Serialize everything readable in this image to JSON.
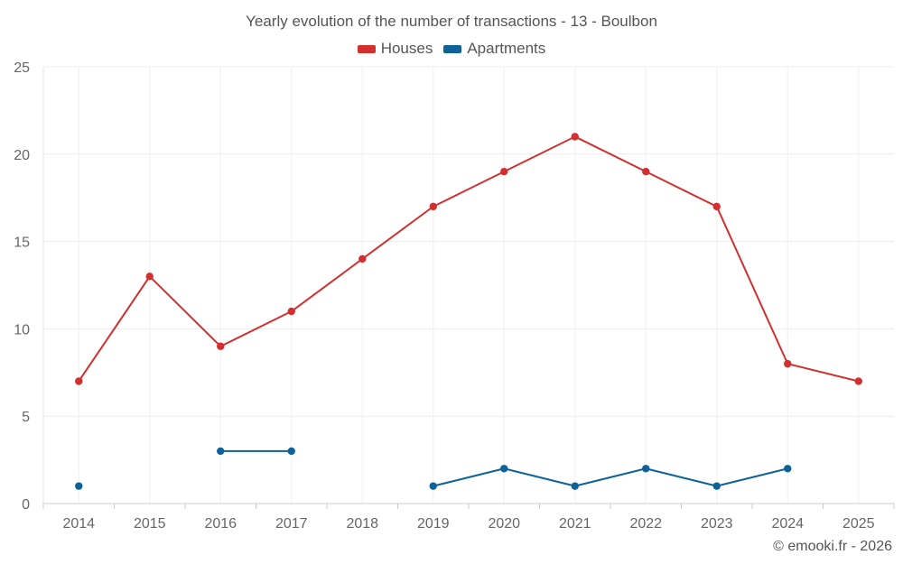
{
  "chart_data": {
    "type": "line",
    "title": "Yearly evolution of the number of transactions - 13 - Boulbon",
    "xlabel": "",
    "ylabel": "",
    "categories": [
      "2014",
      "2015",
      "2016",
      "2017",
      "2018",
      "2019",
      "2020",
      "2021",
      "2022",
      "2023",
      "2024",
      "2025"
    ],
    "ylim": [
      0,
      25
    ],
    "yticks": [
      0,
      5,
      10,
      15,
      20,
      25
    ],
    "grid": true,
    "legend_position": "top-center",
    "series": [
      {
        "name": "Houses",
        "color": "#d32f2f",
        "values": [
          7,
          13,
          9,
          11,
          14,
          17,
          19,
          21,
          19,
          17,
          8,
          7
        ]
      },
      {
        "name": "Apartments",
        "color": "#0d6399",
        "values": [
          1,
          null,
          3,
          3,
          null,
          1,
          2,
          1,
          2,
          1,
          2,
          null
        ]
      }
    ]
  },
  "footer": {
    "copyright": "© emooki.fr - 2026"
  }
}
